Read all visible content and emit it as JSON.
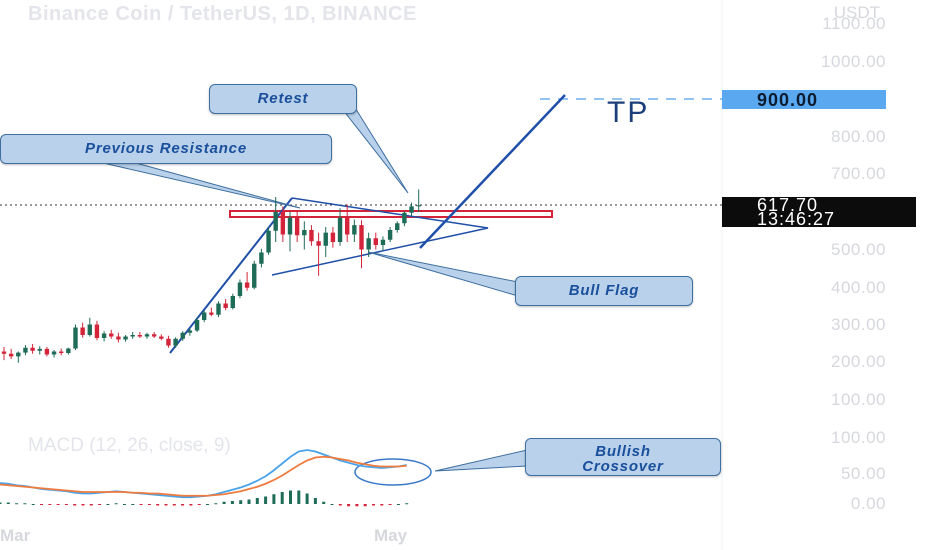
{
  "header": {
    "title": "Binance Coin / TetherUS, 1D, BINANCE",
    "currency": "USDT"
  },
  "price_axis": {
    "ticks": [
      "1100.00",
      "1000.00",
      "900.00",
      "800.00",
      "700.00",
      "617.70",
      "500.00",
      "400.00",
      "300.00",
      "200.00",
      "100.00"
    ],
    "current_price": "617.70",
    "countdown": "13:46:27",
    "target_price": "900.00"
  },
  "macd_panel": {
    "title": "MACD (12, 26, close, 9)",
    "ticks": [
      "100.00",
      "50.00",
      "0.00"
    ]
  },
  "time_axis": {
    "ticks": [
      "Mar",
      "May"
    ]
  },
  "annotations": {
    "retest": "Retest",
    "previous_resistance": "Previous Resistance",
    "bull_flag": "Bull Flag",
    "bullish_crossover_line1": "Bullish",
    "bullish_crossover_line2": "Crossover",
    "tp": "TP"
  },
  "colors": {
    "up": "#1e6b57",
    "down": "#d3243a",
    "trendline": "#1f4fa8",
    "macd_line": "#4aa3e8",
    "signal_line": "#f07b3f",
    "target_tag": "#5aa8f0",
    "callout_fill": "#b9d1ea"
  },
  "chart_data": [
    {
      "type": "candlestick",
      "title": "Binance Coin / TetherUS, 1D, BINANCE",
      "ylabel": "USDT",
      "ylim": [
        0,
        1150
      ],
      "x": [
        "Mar",
        "May"
      ],
      "candles": [
        {
          "o": 228,
          "h": 240,
          "l": 205,
          "c": 222
        },
        {
          "o": 222,
          "h": 235,
          "l": 208,
          "c": 215
        },
        {
          "o": 215,
          "h": 228,
          "l": 198,
          "c": 225
        },
        {
          "o": 225,
          "h": 245,
          "l": 218,
          "c": 238
        },
        {
          "o": 238,
          "h": 248,
          "l": 222,
          "c": 230
        },
        {
          "o": 230,
          "h": 242,
          "l": 220,
          "c": 235
        },
        {
          "o": 235,
          "h": 240,
          "l": 215,
          "c": 220
        },
        {
          "o": 220,
          "h": 232,
          "l": 212,
          "c": 228
        },
        {
          "o": 228,
          "h": 236,
          "l": 218,
          "c": 224
        },
        {
          "o": 224,
          "h": 238,
          "l": 220,
          "c": 236
        },
        {
          "o": 236,
          "h": 300,
          "l": 232,
          "c": 292
        },
        {
          "o": 292,
          "h": 305,
          "l": 265,
          "c": 272
        },
        {
          "o": 272,
          "h": 318,
          "l": 268,
          "c": 300
        },
        {
          "o": 300,
          "h": 310,
          "l": 258,
          "c": 264
        },
        {
          "o": 264,
          "h": 282,
          "l": 255,
          "c": 276
        },
        {
          "o": 276,
          "h": 286,
          "l": 262,
          "c": 268
        },
        {
          "o": 268,
          "h": 278,
          "l": 252,
          "c": 260
        },
        {
          "o": 260,
          "h": 272,
          "l": 254,
          "c": 268
        },
        {
          "o": 268,
          "h": 280,
          "l": 262,
          "c": 272
        },
        {
          "o": 272,
          "h": 280,
          "l": 264,
          "c": 268
        },
        {
          "o": 268,
          "h": 278,
          "l": 262,
          "c": 274
        },
        {
          "o": 274,
          "h": 280,
          "l": 264,
          "c": 268
        },
        {
          "o": 268,
          "h": 274,
          "l": 258,
          "c": 262
        },
        {
          "o": 262,
          "h": 270,
          "l": 238,
          "c": 244
        },
        {
          "o": 244,
          "h": 266,
          "l": 238,
          "c": 262
        },
        {
          "o": 262,
          "h": 282,
          "l": 256,
          "c": 278
        },
        {
          "o": 278,
          "h": 290,
          "l": 270,
          "c": 284
        },
        {
          "o": 284,
          "h": 318,
          "l": 280,
          "c": 312
        },
        {
          "o": 312,
          "h": 338,
          "l": 306,
          "c": 332
        },
        {
          "o": 332,
          "h": 345,
          "l": 322,
          "c": 326
        },
        {
          "o": 326,
          "h": 362,
          "l": 320,
          "c": 356
        },
        {
          "o": 356,
          "h": 368,
          "l": 338,
          "c": 344
        },
        {
          "o": 344,
          "h": 382,
          "l": 340,
          "c": 376
        },
        {
          "o": 376,
          "h": 420,
          "l": 370,
          "c": 412
        },
        {
          "o": 412,
          "h": 440,
          "l": 390,
          "c": 398
        },
        {
          "o": 398,
          "h": 470,
          "l": 394,
          "c": 462
        },
        {
          "o": 462,
          "h": 502,
          "l": 452,
          "c": 492
        },
        {
          "o": 492,
          "h": 560,
          "l": 486,
          "c": 550
        },
        {
          "o": 550,
          "h": 640,
          "l": 520,
          "c": 600
        },
        {
          "o": 600,
          "h": 615,
          "l": 520,
          "c": 540
        },
        {
          "o": 540,
          "h": 600,
          "l": 495,
          "c": 585
        },
        {
          "o": 585,
          "h": 600,
          "l": 520,
          "c": 538
        },
        {
          "o": 538,
          "h": 575,
          "l": 500,
          "c": 552
        },
        {
          "o": 552,
          "h": 565,
          "l": 510,
          "c": 522
        },
        {
          "o": 522,
          "h": 545,
          "l": 430,
          "c": 510
        },
        {
          "o": 510,
          "h": 560,
          "l": 480,
          "c": 545
        },
        {
          "o": 545,
          "h": 560,
          "l": 505,
          "c": 520
        },
        {
          "o": 520,
          "h": 610,
          "l": 510,
          "c": 585
        },
        {
          "o": 585,
          "h": 620,
          "l": 520,
          "c": 540
        },
        {
          "o": 540,
          "h": 580,
          "l": 520,
          "c": 565
        },
        {
          "o": 565,
          "h": 578,
          "l": 450,
          "c": 500
        },
        {
          "o": 500,
          "h": 545,
          "l": 480,
          "c": 530
        },
        {
          "o": 530,
          "h": 545,
          "l": 500,
          "c": 512
        },
        {
          "o": 512,
          "h": 535,
          "l": 498,
          "c": 526
        },
        {
          "o": 526,
          "h": 560,
          "l": 520,
          "c": 552
        },
        {
          "o": 552,
          "h": 575,
          "l": 545,
          "c": 570
        },
        {
          "o": 570,
          "h": 602,
          "l": 562,
          "c": 598
        },
        {
          "o": 598,
          "h": 625,
          "l": 590,
          "c": 615
        },
        {
          "o": 615,
          "h": 660,
          "l": 600,
          "c": 618
        }
      ],
      "horizontal_levels": [
        {
          "label": "900.00",
          "value": 900,
          "style": "dashed"
        },
        {
          "label": "617.70",
          "value": 617.7,
          "style": "dotted"
        }
      ]
    },
    {
      "type": "line",
      "title": "MACD (12, 26, close, 9)",
      "ylim": [
        -5,
        110
      ],
      "series": [
        {
          "name": "MACD",
          "values": [
            28,
            27,
            25,
            24,
            22,
            20,
            19,
            18,
            17,
            15,
            14,
            14,
            15,
            16,
            17,
            16,
            15,
            14,
            13,
            12,
            11,
            10,
            9,
            9,
            10,
            11,
            13,
            16,
            19,
            22,
            26,
            31,
            37,
            45,
            54,
            63,
            70,
            72,
            70,
            66,
            62,
            58,
            55,
            52,
            50,
            49,
            48,
            49,
            50,
            52
          ]
        },
        {
          "name": "Signal",
          "values": [
            26,
            25,
            24,
            23,
            22,
            21,
            20,
            19,
            18,
            17,
            16,
            16,
            16,
            16,
            16,
            16,
            15,
            15,
            14,
            14,
            13,
            12,
            11,
            11,
            11,
            11,
            12,
            13,
            15,
            17,
            20,
            23,
            27,
            32,
            38,
            45,
            52,
            58,
            62,
            63,
            62,
            60,
            58,
            55,
            53,
            51,
            50,
            50,
            50,
            51
          ]
        }
      ],
      "histogram": [
        2,
        2,
        1,
        1,
        0,
        -1,
        -1,
        -1,
        -1,
        -2,
        -2,
        -2,
        -1,
        0,
        1,
        0,
        0,
        -1,
        -1,
        -2,
        -2,
        -2,
        -2,
        -2,
        -1,
        0,
        1,
        3,
        4,
        5,
        6,
        8,
        10,
        13,
        16,
        18,
        18,
        14,
        8,
        3,
        0,
        -2,
        -3,
        -3,
        -3,
        -2,
        -2,
        -1,
        0,
        1
      ]
    }
  ]
}
